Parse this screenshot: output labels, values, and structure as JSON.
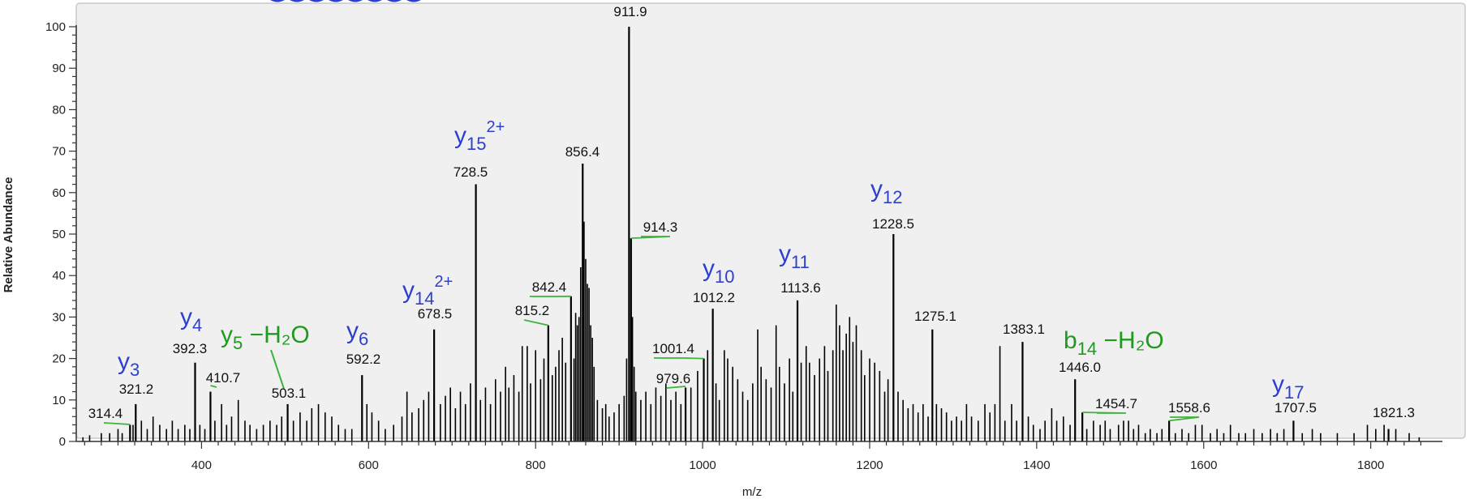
{
  "chart_data": {
    "type": "bar",
    "title": "",
    "xlabel": "m/z",
    "ylabel": "Relative Abundance",
    "xlim": [
      250,
      1880
    ],
    "ylim": [
      0,
      100
    ],
    "x_ticks": [
      400,
      600,
      800,
      1000,
      1200,
      1400,
      1600,
      1800
    ],
    "y_ticks": [
      0,
      10,
      20,
      30,
      40,
      50,
      60,
      70,
      80,
      90,
      100
    ],
    "grid": false,
    "labeled_peaks": [
      {
        "mz": 314.4,
        "intensity": 4,
        "label": "314.4"
      },
      {
        "mz": 321.2,
        "intensity": 9,
        "label": "321.2"
      },
      {
        "mz": 392.3,
        "intensity": 19,
        "label": "392.3"
      },
      {
        "mz": 410.7,
        "intensity": 12,
        "label": "410.7"
      },
      {
        "mz": 503.1,
        "intensity": 9,
        "label": "503.1"
      },
      {
        "mz": 592.2,
        "intensity": 16,
        "label": "592.2"
      },
      {
        "mz": 678.5,
        "intensity": 27,
        "label": "678.5"
      },
      {
        "mz": 728.5,
        "intensity": 62,
        "label": "728.5"
      },
      {
        "mz": 815.2,
        "intensity": 28,
        "label": "815.2"
      },
      {
        "mz": 842.4,
        "intensity": 35,
        "label": "842.4"
      },
      {
        "mz": 856.4,
        "intensity": 67,
        "label": "856.4"
      },
      {
        "mz": 911.9,
        "intensity": 100,
        "label": "911.9"
      },
      {
        "mz": 914.3,
        "intensity": 49,
        "label": "914.3"
      },
      {
        "mz": 979.6,
        "intensity": 13,
        "label": "979.6"
      },
      {
        "mz": 1001.4,
        "intensity": 20,
        "label": "1001.4"
      },
      {
        "mz": 1012.2,
        "intensity": 32,
        "label": "1012.2"
      },
      {
        "mz": 1113.6,
        "intensity": 34,
        "label": "1113.6"
      },
      {
        "mz": 1228.5,
        "intensity": 50,
        "label": "1228.5"
      },
      {
        "mz": 1275.1,
        "intensity": 27,
        "label": "1275.1"
      },
      {
        "mz": 1383.1,
        "intensity": 24,
        "label": "1383.1"
      },
      {
        "mz": 1446.0,
        "intensity": 15,
        "label": "1446.0"
      },
      {
        "mz": 1454.7,
        "intensity": 7,
        "label": "1454.7"
      },
      {
        "mz": 1558.6,
        "intensity": 5,
        "label": "1558.6"
      },
      {
        "mz": 1707.5,
        "intensity": 5,
        "label": "1707.5"
      },
      {
        "mz": 1821.3,
        "intensity": 3,
        "label": "1821.3"
      }
    ],
    "minor_peaks": [
      [
        258,
        1
      ],
      [
        266,
        1.5
      ],
      [
        280,
        2
      ],
      [
        290,
        2
      ],
      [
        300,
        3
      ],
      [
        305,
        2
      ],
      [
        318,
        4
      ],
      [
        328,
        5
      ],
      [
        335,
        3
      ],
      [
        342,
        6
      ],
      [
        350,
        4
      ],
      [
        358,
        3
      ],
      [
        365,
        5
      ],
      [
        372,
        3
      ],
      [
        380,
        4
      ],
      [
        386,
        3
      ],
      [
        398,
        4
      ],
      [
        404,
        3
      ],
      [
        416,
        5
      ],
      [
        424,
        9
      ],
      [
        430,
        4
      ],
      [
        436,
        6
      ],
      [
        444,
        10
      ],
      [
        452,
        5
      ],
      [
        458,
        4
      ],
      [
        466,
        3
      ],
      [
        474,
        4
      ],
      [
        482,
        5
      ],
      [
        490,
        4
      ],
      [
        496,
        6
      ],
      [
        510,
        5
      ],
      [
        518,
        7
      ],
      [
        526,
        5
      ],
      [
        532,
        8
      ],
      [
        540,
        9
      ],
      [
        548,
        7
      ],
      [
        556,
        6
      ],
      [
        564,
        4
      ],
      [
        572,
        3
      ],
      [
        580,
        3
      ],
      [
        598,
        9
      ],
      [
        604,
        7
      ],
      [
        612,
        5
      ],
      [
        620,
        3
      ],
      [
        630,
        4
      ],
      [
        640,
        6
      ],
      [
        646,
        12
      ],
      [
        652,
        7
      ],
      [
        660,
        8
      ],
      [
        666,
        10
      ],
      [
        672,
        12
      ],
      [
        686,
        9
      ],
      [
        692,
        11
      ],
      [
        698,
        13
      ],
      [
        704,
        8
      ],
      [
        710,
        12
      ],
      [
        716,
        9
      ],
      [
        722,
        14
      ],
      [
        734,
        10
      ],
      [
        740,
        13
      ],
      [
        746,
        9
      ],
      [
        752,
        15
      ],
      [
        758,
        12
      ],
      [
        764,
        18
      ],
      [
        768,
        13
      ],
      [
        774,
        16
      ],
      [
        780,
        12
      ],
      [
        784,
        23
      ],
      [
        790,
        23
      ],
      [
        794,
        14
      ],
      [
        800,
        22
      ],
      [
        806,
        15
      ],
      [
        810,
        20
      ],
      [
        820,
        16
      ],
      [
        824,
        18
      ],
      [
        828,
        22
      ],
      [
        832,
        25
      ],
      [
        836,
        19
      ],
      [
        846,
        20
      ],
      [
        848,
        31
      ],
      [
        850,
        28
      ],
      [
        852,
        30
      ],
      [
        854,
        42
      ],
      [
        858,
        53
      ],
      [
        860,
        44
      ],
      [
        862,
        38
      ],
      [
        864,
        37
      ],
      [
        866,
        28
      ],
      [
        868,
        25
      ],
      [
        870,
        18
      ],
      [
        874,
        10
      ],
      [
        880,
        8
      ],
      [
        884,
        9
      ],
      [
        888,
        6
      ],
      [
        894,
        7
      ],
      [
        900,
        9
      ],
      [
        906,
        11
      ],
      [
        909,
        20
      ],
      [
        916,
        30
      ],
      [
        918,
        18
      ],
      [
        920,
        12
      ],
      [
        926,
        10
      ],
      [
        932,
        12
      ],
      [
        938,
        9
      ],
      [
        944,
        13
      ],
      [
        950,
        11
      ],
      [
        956,
        14
      ],
      [
        962,
        10
      ],
      [
        968,
        12
      ],
      [
        974,
        9
      ],
      [
        986,
        13
      ],
      [
        994,
        17
      ],
      [
        1006,
        22
      ],
      [
        1016,
        14
      ],
      [
        1020,
        10
      ],
      [
        1026,
        22
      ],
      [
        1030,
        20
      ],
      [
        1036,
        18
      ],
      [
        1042,
        15
      ],
      [
        1048,
        12
      ],
      [
        1054,
        10
      ],
      [
        1060,
        14
      ],
      [
        1066,
        27
      ],
      [
        1070,
        18
      ],
      [
        1076,
        15
      ],
      [
        1082,
        13
      ],
      [
        1088,
        28
      ],
      [
        1092,
        18
      ],
      [
        1098,
        14
      ],
      [
        1104,
        20
      ],
      [
        1108,
        12
      ],
      [
        1118,
        19
      ],
      [
        1124,
        23
      ],
      [
        1128,
        19
      ],
      [
        1134,
        16
      ],
      [
        1140,
        20
      ],
      [
        1146,
        23
      ],
      [
        1150,
        17
      ],
      [
        1156,
        22
      ],
      [
        1160,
        33
      ],
      [
        1164,
        28
      ],
      [
        1168,
        22
      ],
      [
        1172,
        26
      ],
      [
        1176,
        30
      ],
      [
        1180,
        24
      ],
      [
        1184,
        28
      ],
      [
        1190,
        22
      ],
      [
        1194,
        16
      ],
      [
        1200,
        20
      ],
      [
        1206,
        19
      ],
      [
        1212,
        17
      ],
      [
        1218,
        12
      ],
      [
        1222,
        15
      ],
      [
        1234,
        12
      ],
      [
        1240,
        10
      ],
      [
        1246,
        8
      ],
      [
        1252,
        9
      ],
      [
        1258,
        7
      ],
      [
        1264,
        9
      ],
      [
        1270,
        6
      ],
      [
        1280,
        9
      ],
      [
        1286,
        8
      ],
      [
        1292,
        7
      ],
      [
        1298,
        5
      ],
      [
        1304,
        6
      ],
      [
        1310,
        5
      ],
      [
        1316,
        9
      ],
      [
        1322,
        6
      ],
      [
        1330,
        5
      ],
      [
        1338,
        9
      ],
      [
        1344,
        7
      ],
      [
        1350,
        9
      ],
      [
        1356,
        23
      ],
      [
        1362,
        5
      ],
      [
        1370,
        9
      ],
      [
        1376,
        5
      ],
      [
        1390,
        6
      ],
      [
        1396,
        4
      ],
      [
        1404,
        3
      ],
      [
        1410,
        5
      ],
      [
        1418,
        8
      ],
      [
        1424,
        5
      ],
      [
        1432,
        6
      ],
      [
        1440,
        4
      ],
      [
        1460,
        3
      ],
      [
        1468,
        5
      ],
      [
        1476,
        4
      ],
      [
        1482,
        5
      ],
      [
        1488,
        3
      ],
      [
        1498,
        4
      ],
      [
        1504,
        5
      ],
      [
        1510,
        5
      ],
      [
        1516,
        3
      ],
      [
        1522,
        4
      ],
      [
        1530,
        2
      ],
      [
        1536,
        3
      ],
      [
        1544,
        2
      ],
      [
        1550,
        3
      ],
      [
        1566,
        2
      ],
      [
        1574,
        3
      ],
      [
        1582,
        2
      ],
      [
        1590,
        4
      ],
      [
        1598,
        4
      ],
      [
        1608,
        2
      ],
      [
        1616,
        3
      ],
      [
        1624,
        2
      ],
      [
        1632,
        4
      ],
      [
        1642,
        2
      ],
      [
        1650,
        2
      ],
      [
        1660,
        3
      ],
      [
        1670,
        2
      ],
      [
        1680,
        3
      ],
      [
        1688,
        2
      ],
      [
        1696,
        3
      ],
      [
        1718,
        2
      ],
      [
        1730,
        3
      ],
      [
        1740,
        2
      ],
      [
        1760,
        2
      ],
      [
        1780,
        2
      ],
      [
        1796,
        4
      ],
      [
        1806,
        3
      ],
      [
        1816,
        4
      ],
      [
        1830,
        3
      ],
      [
        1846,
        2
      ],
      [
        1858,
        1
      ]
    ],
    "ion_annotations": [
      {
        "base": "y",
        "sub": "3",
        "sup": "",
        "suffix": "",
        "color": "blue",
        "mz": 321.2
      },
      {
        "base": "y",
        "sub": "4",
        "sup": "",
        "suffix": "",
        "color": "blue",
        "mz": 392.3
      },
      {
        "base": "y",
        "sub": "5",
        "sup": "",
        "suffix": " −H₂O",
        "color": "green",
        "mz": 503.1
      },
      {
        "base": "y",
        "sub": "6",
        "sup": "",
        "suffix": "",
        "color": "blue",
        "mz": 592.2
      },
      {
        "base": "y",
        "sub": "14",
        "sup": "2+",
        "suffix": "",
        "color": "blue",
        "mz": 678.5
      },
      {
        "base": "y",
        "sub": "15",
        "sup": "2+",
        "suffix": "",
        "color": "blue",
        "mz": 728.5
      },
      {
        "base": "y",
        "sub": "10",
        "sup": "",
        "suffix": "",
        "color": "blue",
        "mz": 1012.2
      },
      {
        "base": "y",
        "sub": "11",
        "sup": "",
        "suffix": "",
        "color": "blue",
        "mz": 1113.6
      },
      {
        "base": "y",
        "sub": "12",
        "sup": "",
        "suffix": "",
        "color": "blue",
        "mz": 1228.5
      },
      {
        "base": "b",
        "sub": "14",
        "sup": "",
        "suffix": " −H₂O",
        "color": "green",
        "mz": 1446.0
      },
      {
        "base": "y",
        "sub": "17",
        "sup": "",
        "suffix": "",
        "color": "blue",
        "mz": 1707.5
      }
    ],
    "colors": {
      "plot_background": "#f0f0f0",
      "peaks": "#000000",
      "ion_blue": "#2d3fd0",
      "ion_green": "#1e9a1e",
      "leader_green": "#3cb43c"
    }
  }
}
